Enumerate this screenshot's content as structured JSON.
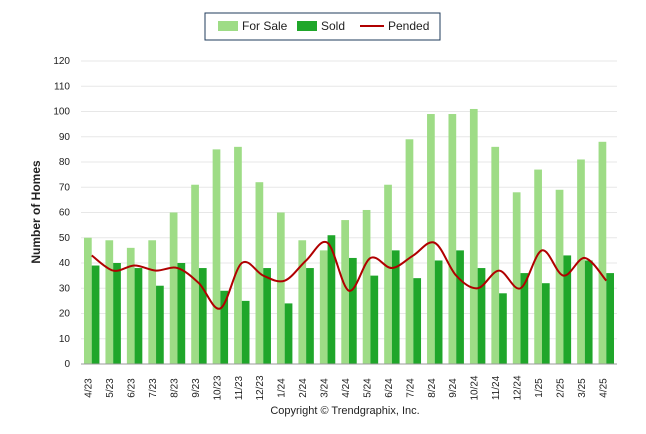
{
  "chart_data": {
    "type": "bar",
    "title": "",
    "xlabel": "",
    "ylabel": "Number of Homes",
    "categories": [
      "4/23",
      "5/23",
      "6/23",
      "7/23",
      "8/23",
      "9/23",
      "10/23",
      "11/23",
      "12/23",
      "1/24",
      "2/24",
      "3/24",
      "4/24",
      "5/24",
      "6/24",
      "7/24",
      "8/24",
      "9/24",
      "10/24",
      "11/24",
      "12/24",
      "1/25",
      "2/25",
      "3/25",
      "4/25"
    ],
    "ylim": [
      0,
      120
    ],
    "yticks": [
      0,
      10,
      20,
      30,
      40,
      50,
      60,
      70,
      80,
      90,
      100,
      110,
      120
    ],
    "grid": true,
    "legend": {
      "placement": "top-center"
    },
    "series": [
      {
        "name": "For Sale",
        "type": "bar",
        "color": "#9edc86",
        "values": [
          50,
          49,
          46,
          49,
          60,
          71,
          85,
          86,
          72,
          60,
          49,
          45,
          57,
          61,
          71,
          89,
          99,
          99,
          101,
          86,
          68,
          77,
          69,
          81,
          88
        ]
      },
      {
        "name": "Sold",
        "type": "bar",
        "color": "#1fa62a",
        "values": [
          39,
          40,
          38,
          31,
          40,
          38,
          29,
          25,
          38,
          24,
          38,
          51,
          42,
          35,
          45,
          34,
          41,
          45,
          38,
          28,
          36,
          32,
          43,
          41,
          36
        ]
      },
      {
        "name": "Pended",
        "type": "line",
        "color": "#b00000",
        "values": [
          43,
          37,
          39,
          37,
          38,
          32,
          22,
          40,
          35,
          33,
          41,
          48,
          29,
          42,
          38,
          43,
          48,
          35,
          30,
          37,
          30,
          45,
          35,
          42,
          33
        ]
      }
    ]
  },
  "footer": {
    "copyright": "Copyright © Trendgraphix, Inc."
  }
}
